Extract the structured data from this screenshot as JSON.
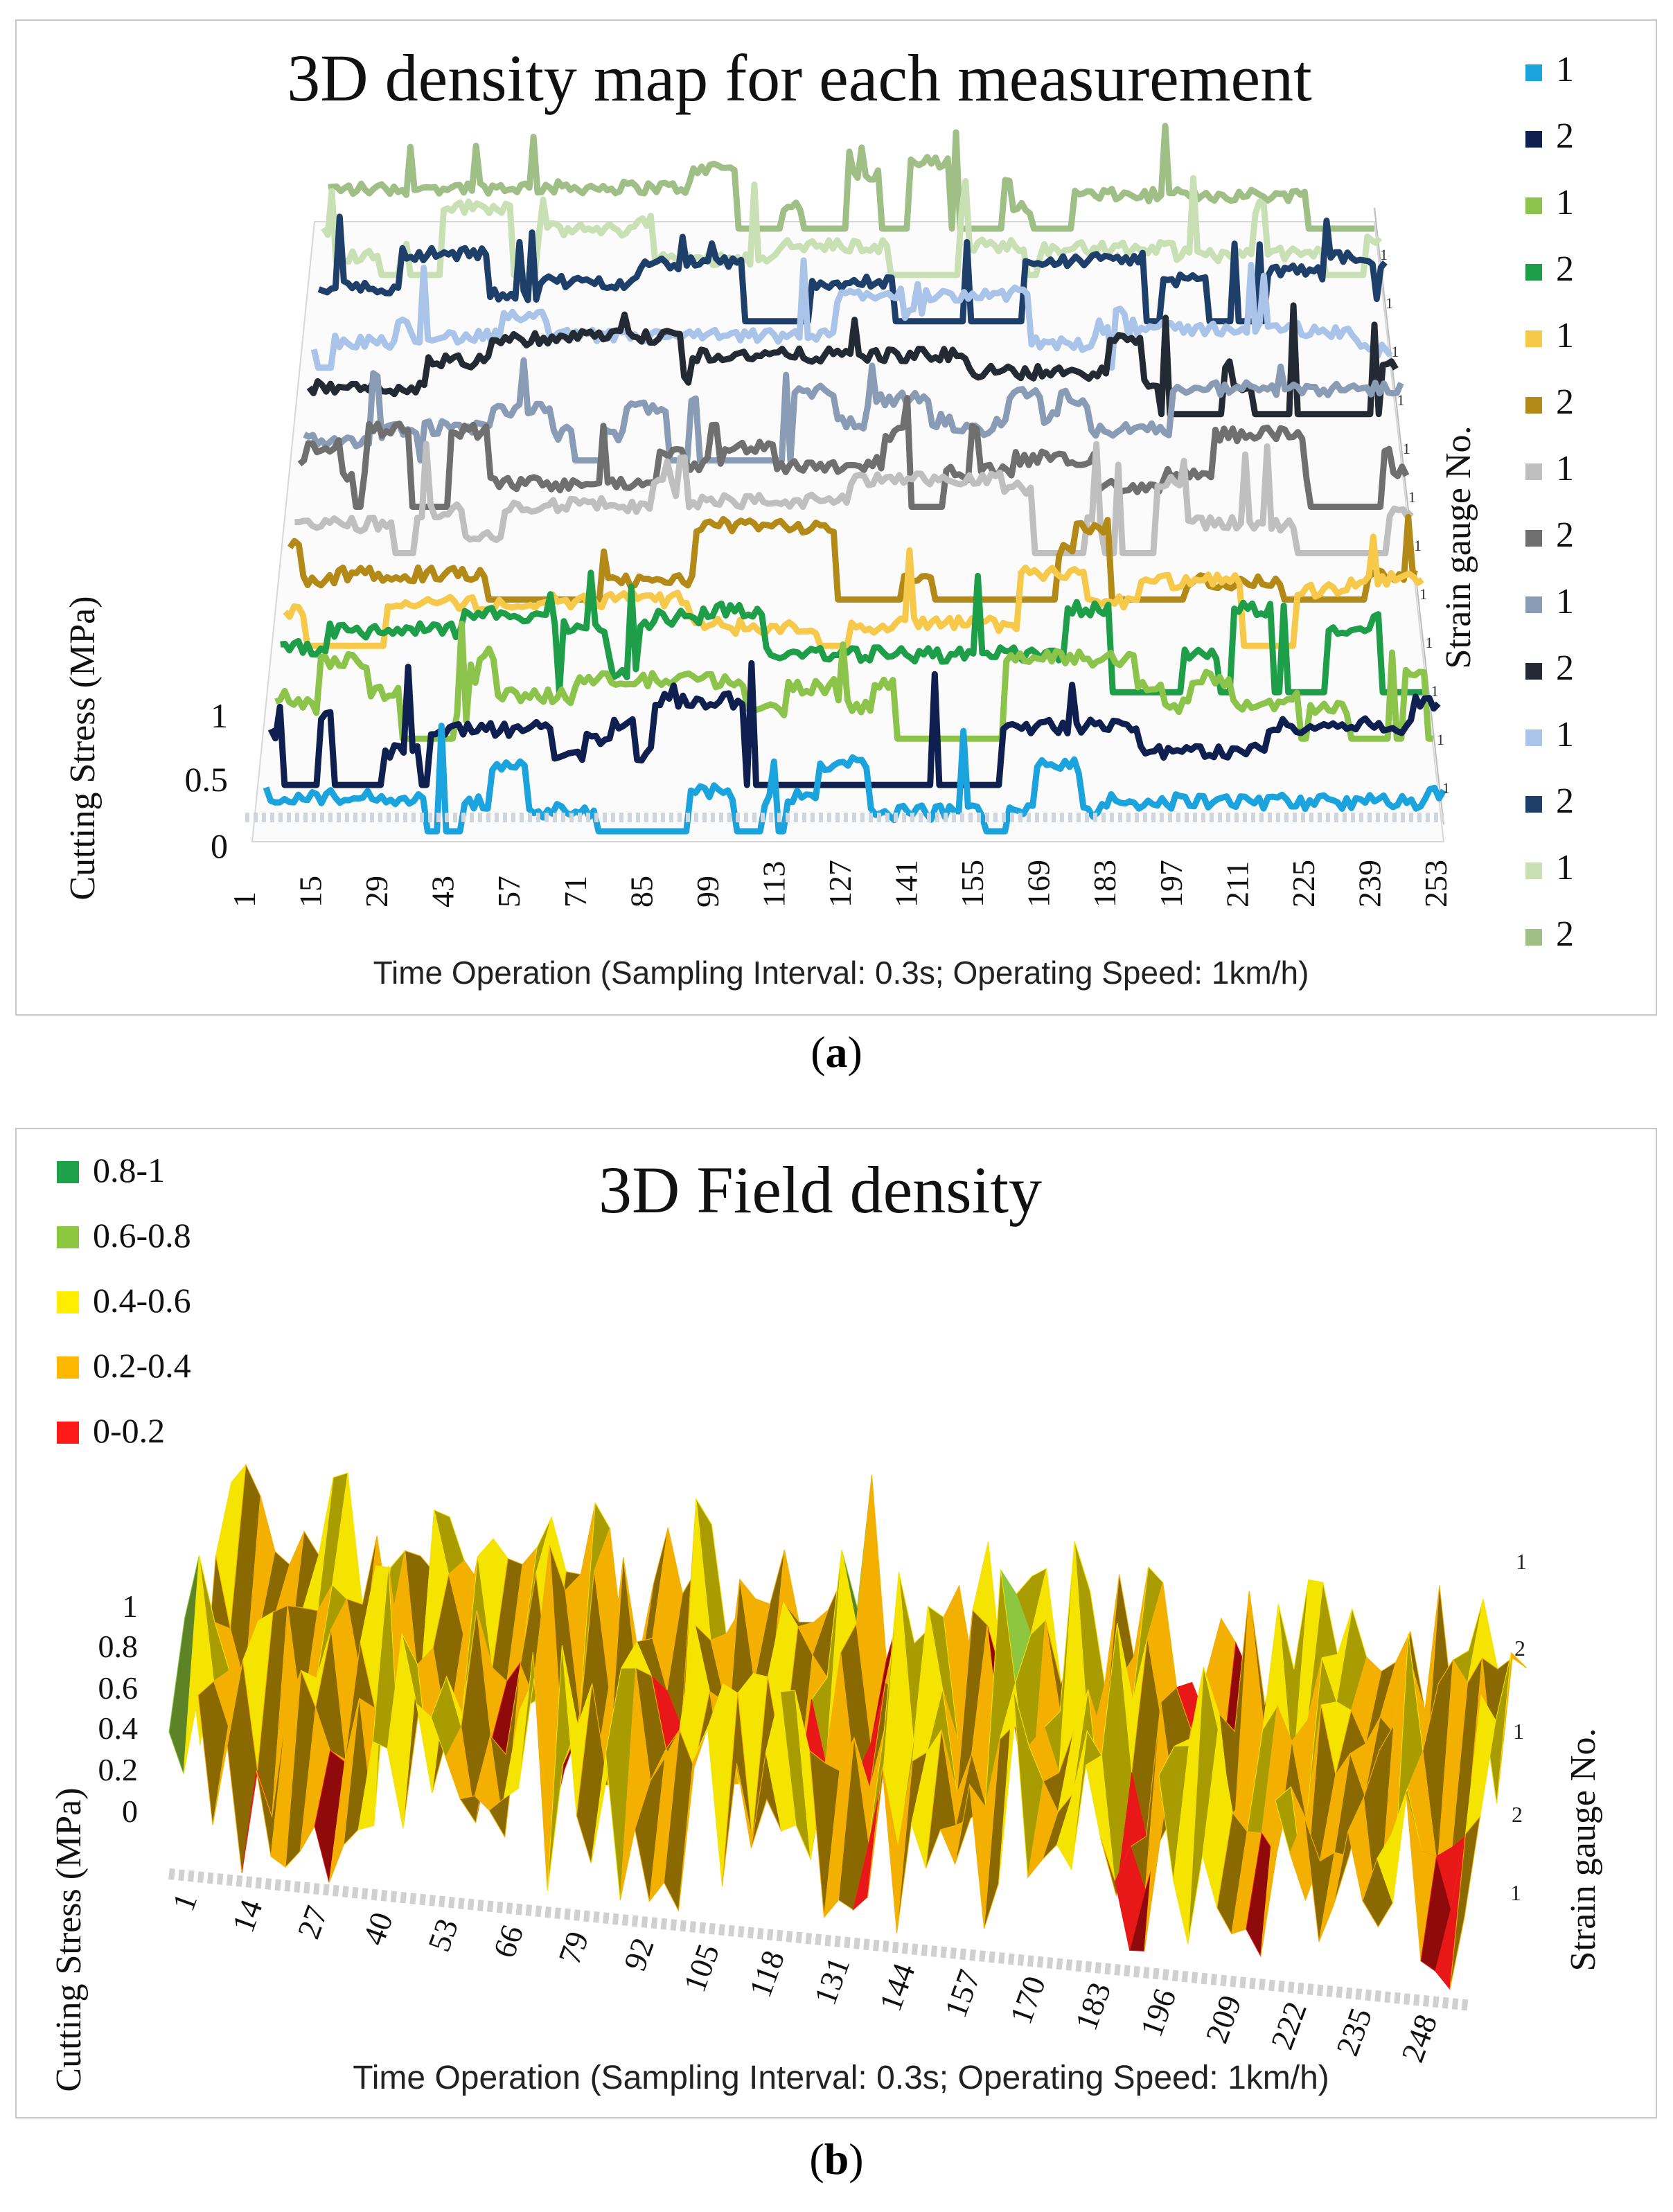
{
  "chart_data": [
    {
      "type": "line",
      "panel": "a",
      "title": "3D density map for each measurement",
      "xlabel": "Time Operation (Sampling Interval: 0.3s; Operating Speed:  1km/h)",
      "ylabel": "Cutting Stress (MPa)",
      "zlabel": "Strain gauge No.",
      "x_ticks": [
        "1",
        "15",
        "29",
        "43",
        "57",
        "71",
        "85",
        "99",
        "113",
        "127",
        "141",
        "155",
        "169",
        "183",
        "197",
        "211",
        "225",
        "239",
        "253"
      ],
      "y_ticks": [
        "0",
        "0.5",
        "1"
      ],
      "depth_ticks": [
        "1",
        "1",
        "1",
        "1",
        "1",
        "1",
        "1",
        "1",
        "1",
        "1",
        "1",
        "1"
      ],
      "ylim": [
        0,
        1
      ],
      "x_range": [
        1,
        256
      ],
      "series": [
        {
          "name": "1",
          "color": "#1aa3dc"
        },
        {
          "name": "2",
          "color": "#0f1f4f"
        },
        {
          "name": "1",
          "color": "#8cc34a"
        },
        {
          "name": "2",
          "color": "#1e9e48"
        },
        {
          "name": "1",
          "color": "#f6c94a"
        },
        {
          "name": "2",
          "color": "#b38a17"
        },
        {
          "name": "1",
          "color": "#bfbfbf"
        },
        {
          "name": "2",
          "color": "#6f6f6f"
        },
        {
          "name": "1",
          "color": "#8a9bb6"
        },
        {
          "name": "2",
          "color": "#242a33"
        },
        {
          "name": "1",
          "color": "#a9c4e8"
        },
        {
          "name": "2",
          "color": "#1f3f6b"
        },
        {
          "name": "1",
          "color": "#c9e0b5"
        },
        {
          "name": "2",
          "color": "#9fbf86"
        }
      ]
    },
    {
      "type": "surface",
      "panel": "b",
      "title": "3D Field density",
      "xlabel": "Time Operation (Sampling Interval: 0.3s; Operating Speed: 1km/h)",
      "ylabel": "Cutting Stress (MPa)",
      "zlabel": "Strain gauge No.",
      "x_ticks": [
        "1",
        "14",
        "27",
        "40",
        "53",
        "66",
        "79",
        "92",
        "105",
        "118",
        "131",
        "144",
        "157",
        "170",
        "183",
        "196",
        "209",
        "222",
        "235",
        "248"
      ],
      "y_ticks": [
        "0",
        "0.2",
        "0.4",
        "0.6",
        "0.8",
        "1"
      ],
      "depth_ticks": [
        "1",
        "2",
        "1",
        "2",
        "1"
      ],
      "ylim": [
        0,
        1
      ],
      "legend": [
        {
          "label": "0.8-1",
          "color": "#1fa04a"
        },
        {
          "label": "0.6-0.8",
          "color": "#8dc63f"
        },
        {
          "label": "0.4-0.6",
          "color": "#ffee00"
        },
        {
          "label": "0.2-0.4",
          "color": "#ffb800"
        },
        {
          "label": "0-0.2",
          "color": "#ff1a1a"
        }
      ]
    }
  ],
  "captions": {
    "a": "a",
    "b": "b"
  }
}
